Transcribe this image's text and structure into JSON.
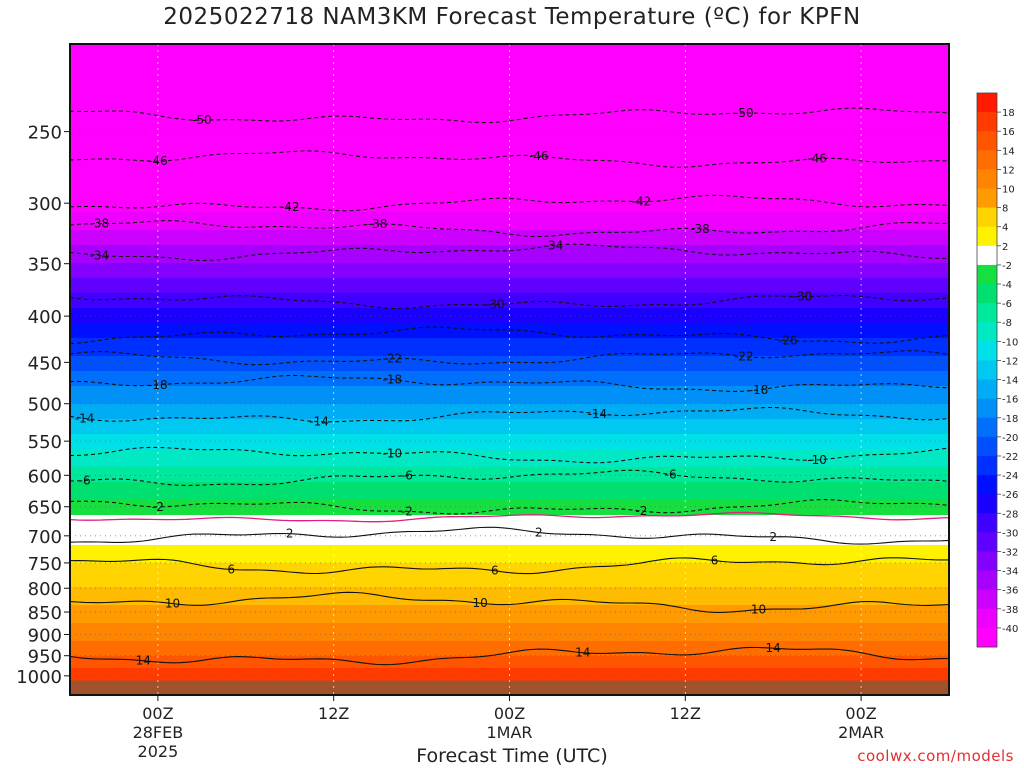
{
  "title": "2025022718 NAM3KM Forecast Temperature (ºC) for KPFN",
  "credit": "coolwx.com/models",
  "chart_data": {
    "type": "heatmap",
    "title": "2025022718 NAM3KM Forecast Temperature (ºC) for KPFN",
    "xlabel": "Forecast Time (UTC)",
    "ylabel": "",
    "x_range_hours_from_00Z_28FEB": [
      -6,
      54
    ],
    "y_scale": "log-pressure",
    "y_range_hPa": [
      1050,
      200
    ],
    "x_ticks": [
      {
        "hour": 0,
        "lines": [
          "00Z",
          "28FEB",
          "2025"
        ]
      },
      {
        "hour": 12,
        "lines": [
          "12Z"
        ]
      },
      {
        "hour": 24,
        "lines": [
          "00Z",
          "1MAR"
        ]
      },
      {
        "hour": 36,
        "lines": [
          "12Z"
        ]
      },
      {
        "hour": 48,
        "lines": [
          "00Z",
          "2MAR"
        ]
      }
    ],
    "y_ticks": [
      250,
      300,
      350,
      400,
      450,
      500,
      550,
      600,
      650,
      700,
      750,
      800,
      850,
      900,
      950,
      1000
    ],
    "colorbar": {
      "labels": [
        18,
        16,
        14,
        12,
        10,
        8,
        4,
        2,
        -2,
        -4,
        -6,
        -8,
        -10,
        -12,
        -14,
        -16,
        -18,
        -20,
        -22,
        -24,
        -26,
        -28,
        -30,
        -32,
        -34,
        -36,
        -38,
        -40
      ],
      "colors": {
        "18": "#ff1a00",
        "16": "#ff3b00",
        "14": "#ff5500",
        "12": "#ff6d00",
        "10": "#ff8400",
        "8": "#ff9a00",
        "6": "#ffbb00",
        "4": "#ffd400",
        "2": "#fff200",
        "0": "#ffffff",
        "-2": "#3cf000",
        "-4": "#15e040",
        "-6": "#00e070",
        "-8": "#00e89c",
        "-10": "#00e8c4",
        "-12": "#00e0e8",
        "-14": "#00c8f0",
        "-16": "#00acf4",
        "-18": "#0090f8",
        "-20": "#0070fc",
        "-22": "#0050ff",
        "-24": "#0030ff",
        "-26": "#0010ff",
        "-28": "#1a00ff",
        "-30": "#4000ff",
        "-32": "#6000ff",
        "-34": "#8400ff",
        "-36": "#a800ff",
        "-38": "#cc00ff",
        "-40": "#ee00ff",
        "-42": "#ff00ff"
      }
    },
    "ground_color": "#a0522d",
    "freezing_line_color": "#e0207a",
    "profile_pressure_hPa": [
      1000,
      950,
      900,
      850,
      800,
      750,
      700,
      650,
      600,
      550,
      500,
      450,
      400,
      350,
      300,
      250,
      200
    ],
    "profile_temperature_C": [
      17,
      14,
      11,
      9,
      6,
      4,
      1,
      -3,
      -7,
      -11,
      -16,
      -21,
      -27,
      -34,
      -41,
      -47,
      -52
    ],
    "contours": [
      {
        "value": -50,
        "pressure_hPa": 240,
        "labels_at_hours": [
          3,
          40
        ]
      },
      {
        "value": -46,
        "pressure_hPa": 268,
        "labels_at_hours": [
          0,
          26,
          45
        ]
      },
      {
        "value": -42,
        "pressure_hPa": 300,
        "labels_at_hours": [
          9,
          33
        ]
      },
      {
        "value": -38,
        "pressure_hPa": 320,
        "labels_at_hours": [
          -4,
          15,
          37
        ]
      },
      {
        "value": -34,
        "pressure_hPa": 340,
        "labels_at_hours": [
          -4,
          27
        ]
      },
      {
        "value": -30,
        "pressure_hPa": 385,
        "labels_at_hours": [
          23,
          44
        ]
      },
      {
        "value": -26,
        "pressure_hPa": 420,
        "labels_at_hours": [
          43
        ]
      },
      {
        "value": -22,
        "pressure_hPa": 445,
        "labels_at_hours": [
          16,
          40
        ]
      },
      {
        "value": -18,
        "pressure_hPa": 475,
        "labels_at_hours": [
          0,
          16,
          41
        ]
      },
      {
        "value": -14,
        "pressure_hPa": 515,
        "labels_at_hours": [
          -5,
          11,
          30
        ]
      },
      {
        "value": -10,
        "pressure_hPa": 570,
        "labels_at_hours": [
          16,
          45
        ]
      },
      {
        "value": -6,
        "pressure_hPa": 605,
        "labels_at_hours": [
          -5,
          17,
          35
        ]
      },
      {
        "value": -2,
        "pressure_hPa": 650,
        "labels_at_hours": [
          0,
          17,
          33
        ]
      },
      {
        "value": 2,
        "pressure_hPa": 700,
        "labels_at_hours": [
          9,
          26,
          42
        ]
      },
      {
        "value": 6,
        "pressure_hPa": 755,
        "labels_at_hours": [
          5,
          23,
          38
        ]
      },
      {
        "value": 10,
        "pressure_hPa": 830,
        "labels_at_hours": [
          1,
          22,
          41
        ]
      },
      {
        "value": 14,
        "pressure_hPa": 950,
        "labels_at_hours": [
          -1,
          29,
          42
        ]
      }
    ]
  }
}
